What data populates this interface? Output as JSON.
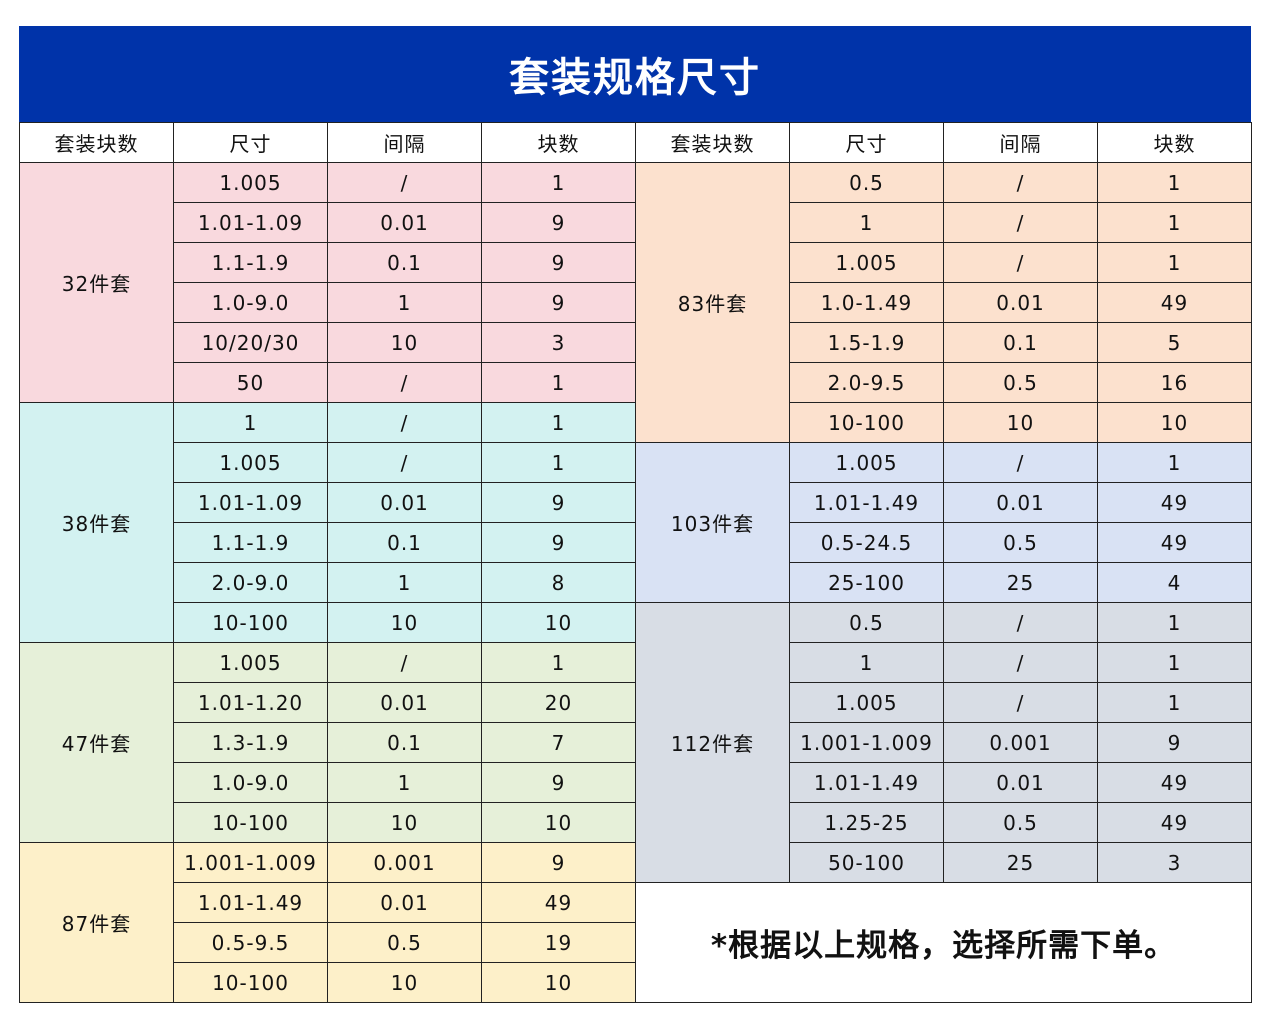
{
  "title": "套装规格尺寸",
  "headers": [
    "套装块数",
    "尺寸",
    "间隔",
    "块数",
    "套装块数",
    "尺寸",
    "间隔",
    "块数"
  ],
  "left_groups": [
    {
      "name": "32件套",
      "color": "pink",
      "rows": [
        [
          "1.005",
          "/",
          "1"
        ],
        [
          "1.01-1.09",
          "0.01",
          "9"
        ],
        [
          "1.1-1.9",
          "0.1",
          "9"
        ],
        [
          "1.0-9.0",
          "1",
          "9"
        ],
        [
          "10/20/30",
          "10",
          "3"
        ],
        [
          "50",
          "/",
          "1"
        ]
      ]
    },
    {
      "name": "38件套",
      "color": "cyan",
      "rows": [
        [
          "1",
          "/",
          "1"
        ],
        [
          "1.005",
          "/",
          "1"
        ],
        [
          "1.01-1.09",
          "0.01",
          "9"
        ],
        [
          "1.1-1.9",
          "0.1",
          "9"
        ],
        [
          "2.0-9.0",
          "1",
          "8"
        ],
        [
          "10-100",
          "10",
          "10"
        ]
      ]
    },
    {
      "name": "47件套",
      "color": "green",
      "rows": [
        [
          "1.005",
          "/",
          "1"
        ],
        [
          "1.01-1.20",
          "0.01",
          "20"
        ],
        [
          "1.3-1.9",
          "0.1",
          "7"
        ],
        [
          "1.0-9.0",
          "1",
          "9"
        ],
        [
          "10-100",
          "10",
          "10"
        ]
      ]
    },
    {
      "name": "87件套",
      "color": "yellow",
      "rows": [
        [
          "1.001-1.009",
          "0.001",
          "9"
        ],
        [
          "1.01-1.49",
          "0.01",
          "49"
        ],
        [
          "0.5-9.5",
          "0.5",
          "19"
        ],
        [
          "10-100",
          "10",
          "10"
        ]
      ]
    }
  ],
  "right_groups": [
    {
      "name": "83件套",
      "color": "peach",
      "rows": [
        [
          "0.5",
          "/",
          "1"
        ],
        [
          "1",
          "/",
          "1"
        ],
        [
          "1.005",
          "/",
          "1"
        ],
        [
          "1.0-1.49",
          "0.01",
          "49"
        ],
        [
          "1.5-1.9",
          "0.1",
          "5"
        ],
        [
          "2.0-9.5",
          "0.5",
          "16"
        ],
        [
          "10-100",
          "10",
          "10"
        ]
      ]
    },
    {
      "name": "103件套",
      "color": "blue",
      "rows": [
        [
          "1.005",
          "/",
          "1"
        ],
        [
          "1.01-1.49",
          "0.01",
          "49"
        ],
        [
          "0.5-24.5",
          "0.5",
          "49"
        ],
        [
          "25-100",
          "25",
          "4"
        ]
      ]
    },
    {
      "name": "112件套",
      "color": "grey",
      "rows": [
        [
          "0.5",
          "/",
          "1"
        ],
        [
          "1",
          "/",
          "1"
        ],
        [
          "1.005",
          "/",
          "1"
        ],
        [
          "1.001-1.009",
          "0.001",
          "9"
        ],
        [
          "1.01-1.49",
          "0.01",
          "49"
        ],
        [
          "1.25-25",
          "0.5",
          "49"
        ],
        [
          "50-100",
          "25",
          "3"
        ]
      ]
    }
  ],
  "note": "*根据以上规格，选择所需下单。"
}
